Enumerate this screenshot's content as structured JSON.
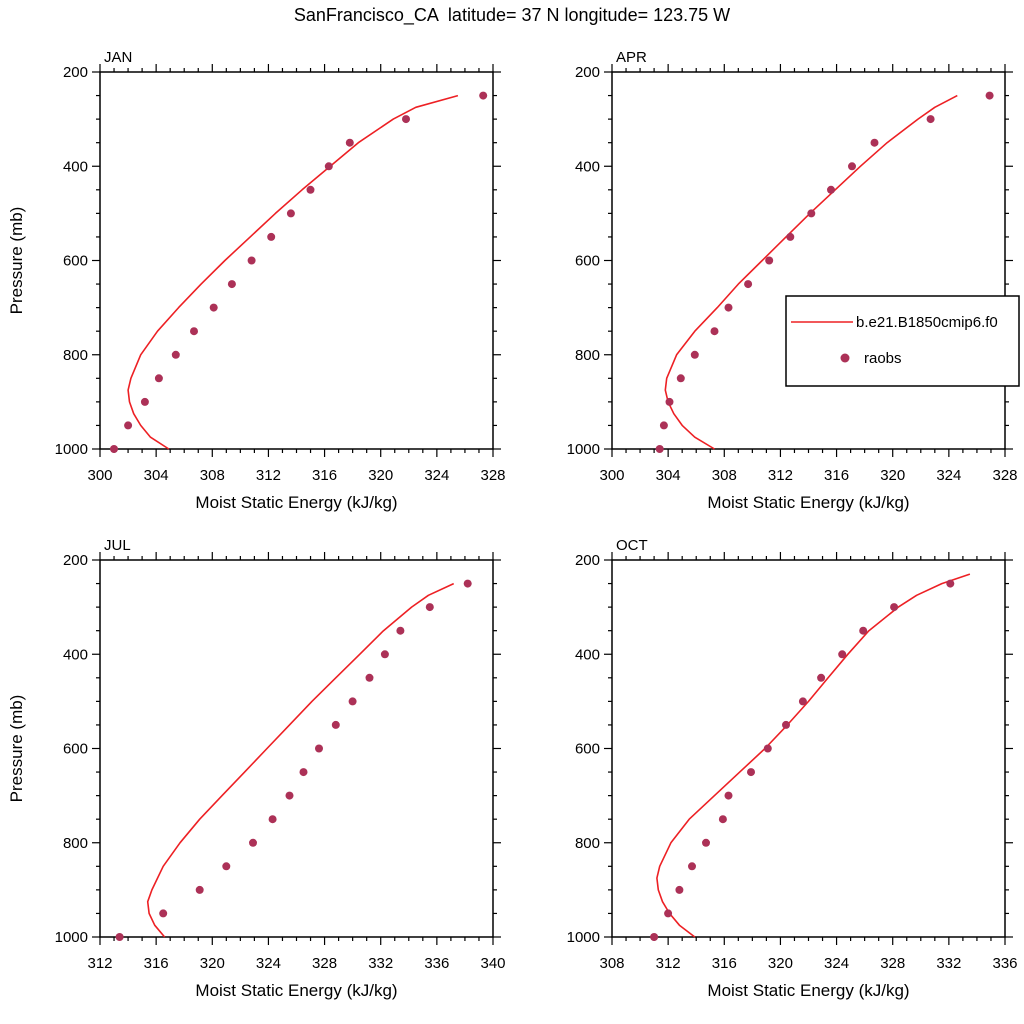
{
  "title": "SanFrancisco_CA  latitude= 37 N longitude= 123.75 W",
  "colors": {
    "model_line": "#ed2024",
    "raobs_dot": "#ac3157",
    "frame": "#000000"
  },
  "legend": {
    "line_label": "b.e21.B1850cmip6.f0",
    "dot_label": "raobs"
  },
  "chart_data": [
    {
      "type": "line",
      "panel_label": "JAN",
      "xlabel": "Moist Static Energy (kJ/kg)",
      "ylabel": "Pressure (mb)",
      "show_ylabel": true,
      "show_legend": false,
      "xlim": [
        300,
        328
      ],
      "xticks": [
        300,
        304,
        308,
        312,
        316,
        320,
        324,
        328
      ],
      "x_minor_step": 1,
      "ylim": [
        200,
        1000
      ],
      "yticks": [
        200,
        400,
        600,
        800,
        1000
      ],
      "y_minor_step": 50,
      "series": [
        {
          "name": "b.e21.B1850cmip6.f0",
          "style": "line",
          "points_p_mse": [
            [
              1000,
              304.9
            ],
            [
              975,
              303.6
            ],
            [
              950,
              302.9
            ],
            [
              925,
              302.4
            ],
            [
              900,
              302.1
            ],
            [
              875,
              302.0
            ],
            [
              850,
              302.2
            ],
            [
              800,
              302.9
            ],
            [
              750,
              304.1
            ],
            [
              700,
              305.6
            ],
            [
              650,
              307.2
            ],
            [
              600,
              308.9
            ],
            [
              550,
              310.7
            ],
            [
              500,
              312.5
            ],
            [
              450,
              314.4
            ],
            [
              400,
              316.4
            ],
            [
              350,
              318.4
            ],
            [
              300,
              320.9
            ],
            [
              275,
              322.5
            ],
            [
              250,
              325.5
            ]
          ]
        },
        {
          "name": "raobs",
          "style": "dots",
          "points_p_mse": [
            [
              1000,
              301.0
            ],
            [
              950,
              302.0
            ],
            [
              900,
              303.2
            ],
            [
              850,
              304.2
            ],
            [
              800,
              305.4
            ],
            [
              750,
              306.7
            ],
            [
              700,
              308.1
            ],
            [
              650,
              309.4
            ],
            [
              600,
              310.8
            ],
            [
              550,
              312.2
            ],
            [
              500,
              313.6
            ],
            [
              450,
              315.0
            ],
            [
              400,
              316.3
            ],
            [
              350,
              317.8
            ],
            [
              300,
              321.8
            ],
            [
              250,
              327.3
            ]
          ]
        }
      ]
    },
    {
      "type": "line",
      "panel_label": "APR",
      "xlabel": "Moist Static Energy (kJ/kg)",
      "ylabel": "Pressure (mb)",
      "show_ylabel": false,
      "show_legend": true,
      "xlim": [
        300,
        328
      ],
      "xticks": [
        300,
        304,
        308,
        312,
        316,
        320,
        324,
        328
      ],
      "x_minor_step": 1,
      "ylim": [
        200,
        1000
      ],
      "yticks": [
        200,
        400,
        600,
        800,
        1000
      ],
      "y_minor_step": 50,
      "series": [
        {
          "name": "b.e21.B1850cmip6.f0",
          "style": "line",
          "points_p_mse": [
            [
              1000,
              307.3
            ],
            [
              975,
              305.9
            ],
            [
              950,
              305.0
            ],
            [
              925,
              304.4
            ],
            [
              900,
              304.0
            ],
            [
              875,
              303.8
            ],
            [
              850,
              303.9
            ],
            [
              800,
              304.6
            ],
            [
              750,
              305.9
            ],
            [
              700,
              307.5
            ],
            [
              650,
              309.0
            ],
            [
              600,
              310.7
            ],
            [
              550,
              312.4
            ],
            [
              500,
              314.1
            ],
            [
              450,
              315.9
            ],
            [
              400,
              317.7
            ],
            [
              350,
              319.6
            ],
            [
              300,
              321.8
            ],
            [
              275,
              323.0
            ],
            [
              250,
              324.6
            ]
          ]
        },
        {
          "name": "raobs",
          "style": "dots",
          "points_p_mse": [
            [
              1000,
              303.4
            ],
            [
              950,
              303.7
            ],
            [
              900,
              304.1
            ],
            [
              850,
              304.9
            ],
            [
              800,
              305.9
            ],
            [
              750,
              307.3
            ],
            [
              700,
              308.3
            ],
            [
              650,
              309.7
            ],
            [
              600,
              311.2
            ],
            [
              550,
              312.7
            ],
            [
              500,
              314.2
            ],
            [
              450,
              315.6
            ],
            [
              400,
              317.1
            ],
            [
              350,
              318.7
            ],
            [
              300,
              322.7
            ],
            [
              250,
              326.9
            ]
          ]
        }
      ]
    },
    {
      "type": "line",
      "panel_label": "JUL",
      "xlabel": "Moist Static Energy (kJ/kg)",
      "ylabel": "Pressure (mb)",
      "show_ylabel": true,
      "show_legend": false,
      "xlim": [
        312,
        340
      ],
      "xticks": [
        312,
        316,
        320,
        324,
        328,
        332,
        336,
        340
      ],
      "x_minor_step": 1,
      "ylim": [
        200,
        1000
      ],
      "yticks": [
        200,
        400,
        600,
        800,
        1000
      ],
      "y_minor_step": 50,
      "series": [
        {
          "name": "b.e21.B1850cmip6.f0",
          "style": "line",
          "points_p_mse": [
            [
              1000,
              316.6
            ],
            [
              975,
              315.9
            ],
            [
              950,
              315.5
            ],
            [
              925,
              315.4
            ],
            [
              900,
              315.7
            ],
            [
              850,
              316.5
            ],
            [
              800,
              317.7
            ],
            [
              750,
              319.1
            ],
            [
              700,
              320.7
            ],
            [
              650,
              322.3
            ],
            [
              600,
              323.9
            ],
            [
              550,
              325.5
            ],
            [
              500,
              327.1
            ],
            [
              450,
              328.8
            ],
            [
              400,
              330.5
            ],
            [
              350,
              332.2
            ],
            [
              300,
              334.2
            ],
            [
              275,
              335.4
            ],
            [
              250,
              337.2
            ]
          ]
        },
        {
          "name": "raobs",
          "style": "dots",
          "points_p_mse": [
            [
              1000,
              313.4
            ],
            [
              950,
              316.5
            ],
            [
              900,
              319.1
            ],
            [
              850,
              321.0
            ],
            [
              800,
              322.9
            ],
            [
              750,
              324.3
            ],
            [
              700,
              325.5
            ],
            [
              650,
              326.5
            ],
            [
              600,
              327.6
            ],
            [
              550,
              328.8
            ],
            [
              500,
              330.0
            ],
            [
              450,
              331.2
            ],
            [
              400,
              332.3
            ],
            [
              350,
              333.4
            ],
            [
              300,
              335.5
            ],
            [
              250,
              338.2
            ]
          ]
        }
      ]
    },
    {
      "type": "line",
      "panel_label": "OCT",
      "xlabel": "Moist Static Energy (kJ/kg)",
      "ylabel": "Pressure (mb)",
      "show_ylabel": false,
      "show_legend": false,
      "xlim": [
        308,
        336
      ],
      "xticks": [
        308,
        312,
        316,
        320,
        324,
        328,
        332,
        336
      ],
      "x_minor_step": 1,
      "ylim": [
        200,
        1000
      ],
      "yticks": [
        200,
        400,
        600,
        800,
        1000
      ],
      "y_minor_step": 50,
      "series": [
        {
          "name": "b.e21.B1850cmip6.f0",
          "style": "line",
          "points_p_mse": [
            [
              1000,
              313.9
            ],
            [
              975,
              312.8
            ],
            [
              950,
              312.1
            ],
            [
              925,
              311.6
            ],
            [
              900,
              311.3
            ],
            [
              875,
              311.2
            ],
            [
              850,
              311.4
            ],
            [
              800,
              312.2
            ],
            [
              750,
              313.5
            ],
            [
              700,
              315.3
            ],
            [
              650,
              317.1
            ],
            [
              600,
              318.9
            ],
            [
              550,
              320.5
            ],
            [
              500,
              322.0
            ],
            [
              450,
              323.4
            ],
            [
              400,
              324.8
            ],
            [
              350,
              326.3
            ],
            [
              300,
              328.4
            ],
            [
              275,
              329.7
            ],
            [
              250,
              331.5
            ],
            [
              230,
              333.5
            ]
          ]
        },
        {
          "name": "raobs",
          "style": "dots",
          "points_p_mse": [
            [
              1000,
              311.0
            ],
            [
              950,
              312.0
            ],
            [
              900,
              312.8
            ],
            [
              850,
              313.7
            ],
            [
              800,
              314.7
            ],
            [
              750,
              315.9
            ],
            [
              700,
              316.3
            ],
            [
              650,
              317.9
            ],
            [
              600,
              319.1
            ],
            [
              550,
              320.4
            ],
            [
              500,
              321.6
            ],
            [
              450,
              322.9
            ],
            [
              400,
              324.4
            ],
            [
              350,
              325.9
            ],
            [
              300,
              328.1
            ],
            [
              250,
              332.1
            ]
          ]
        }
      ]
    }
  ]
}
